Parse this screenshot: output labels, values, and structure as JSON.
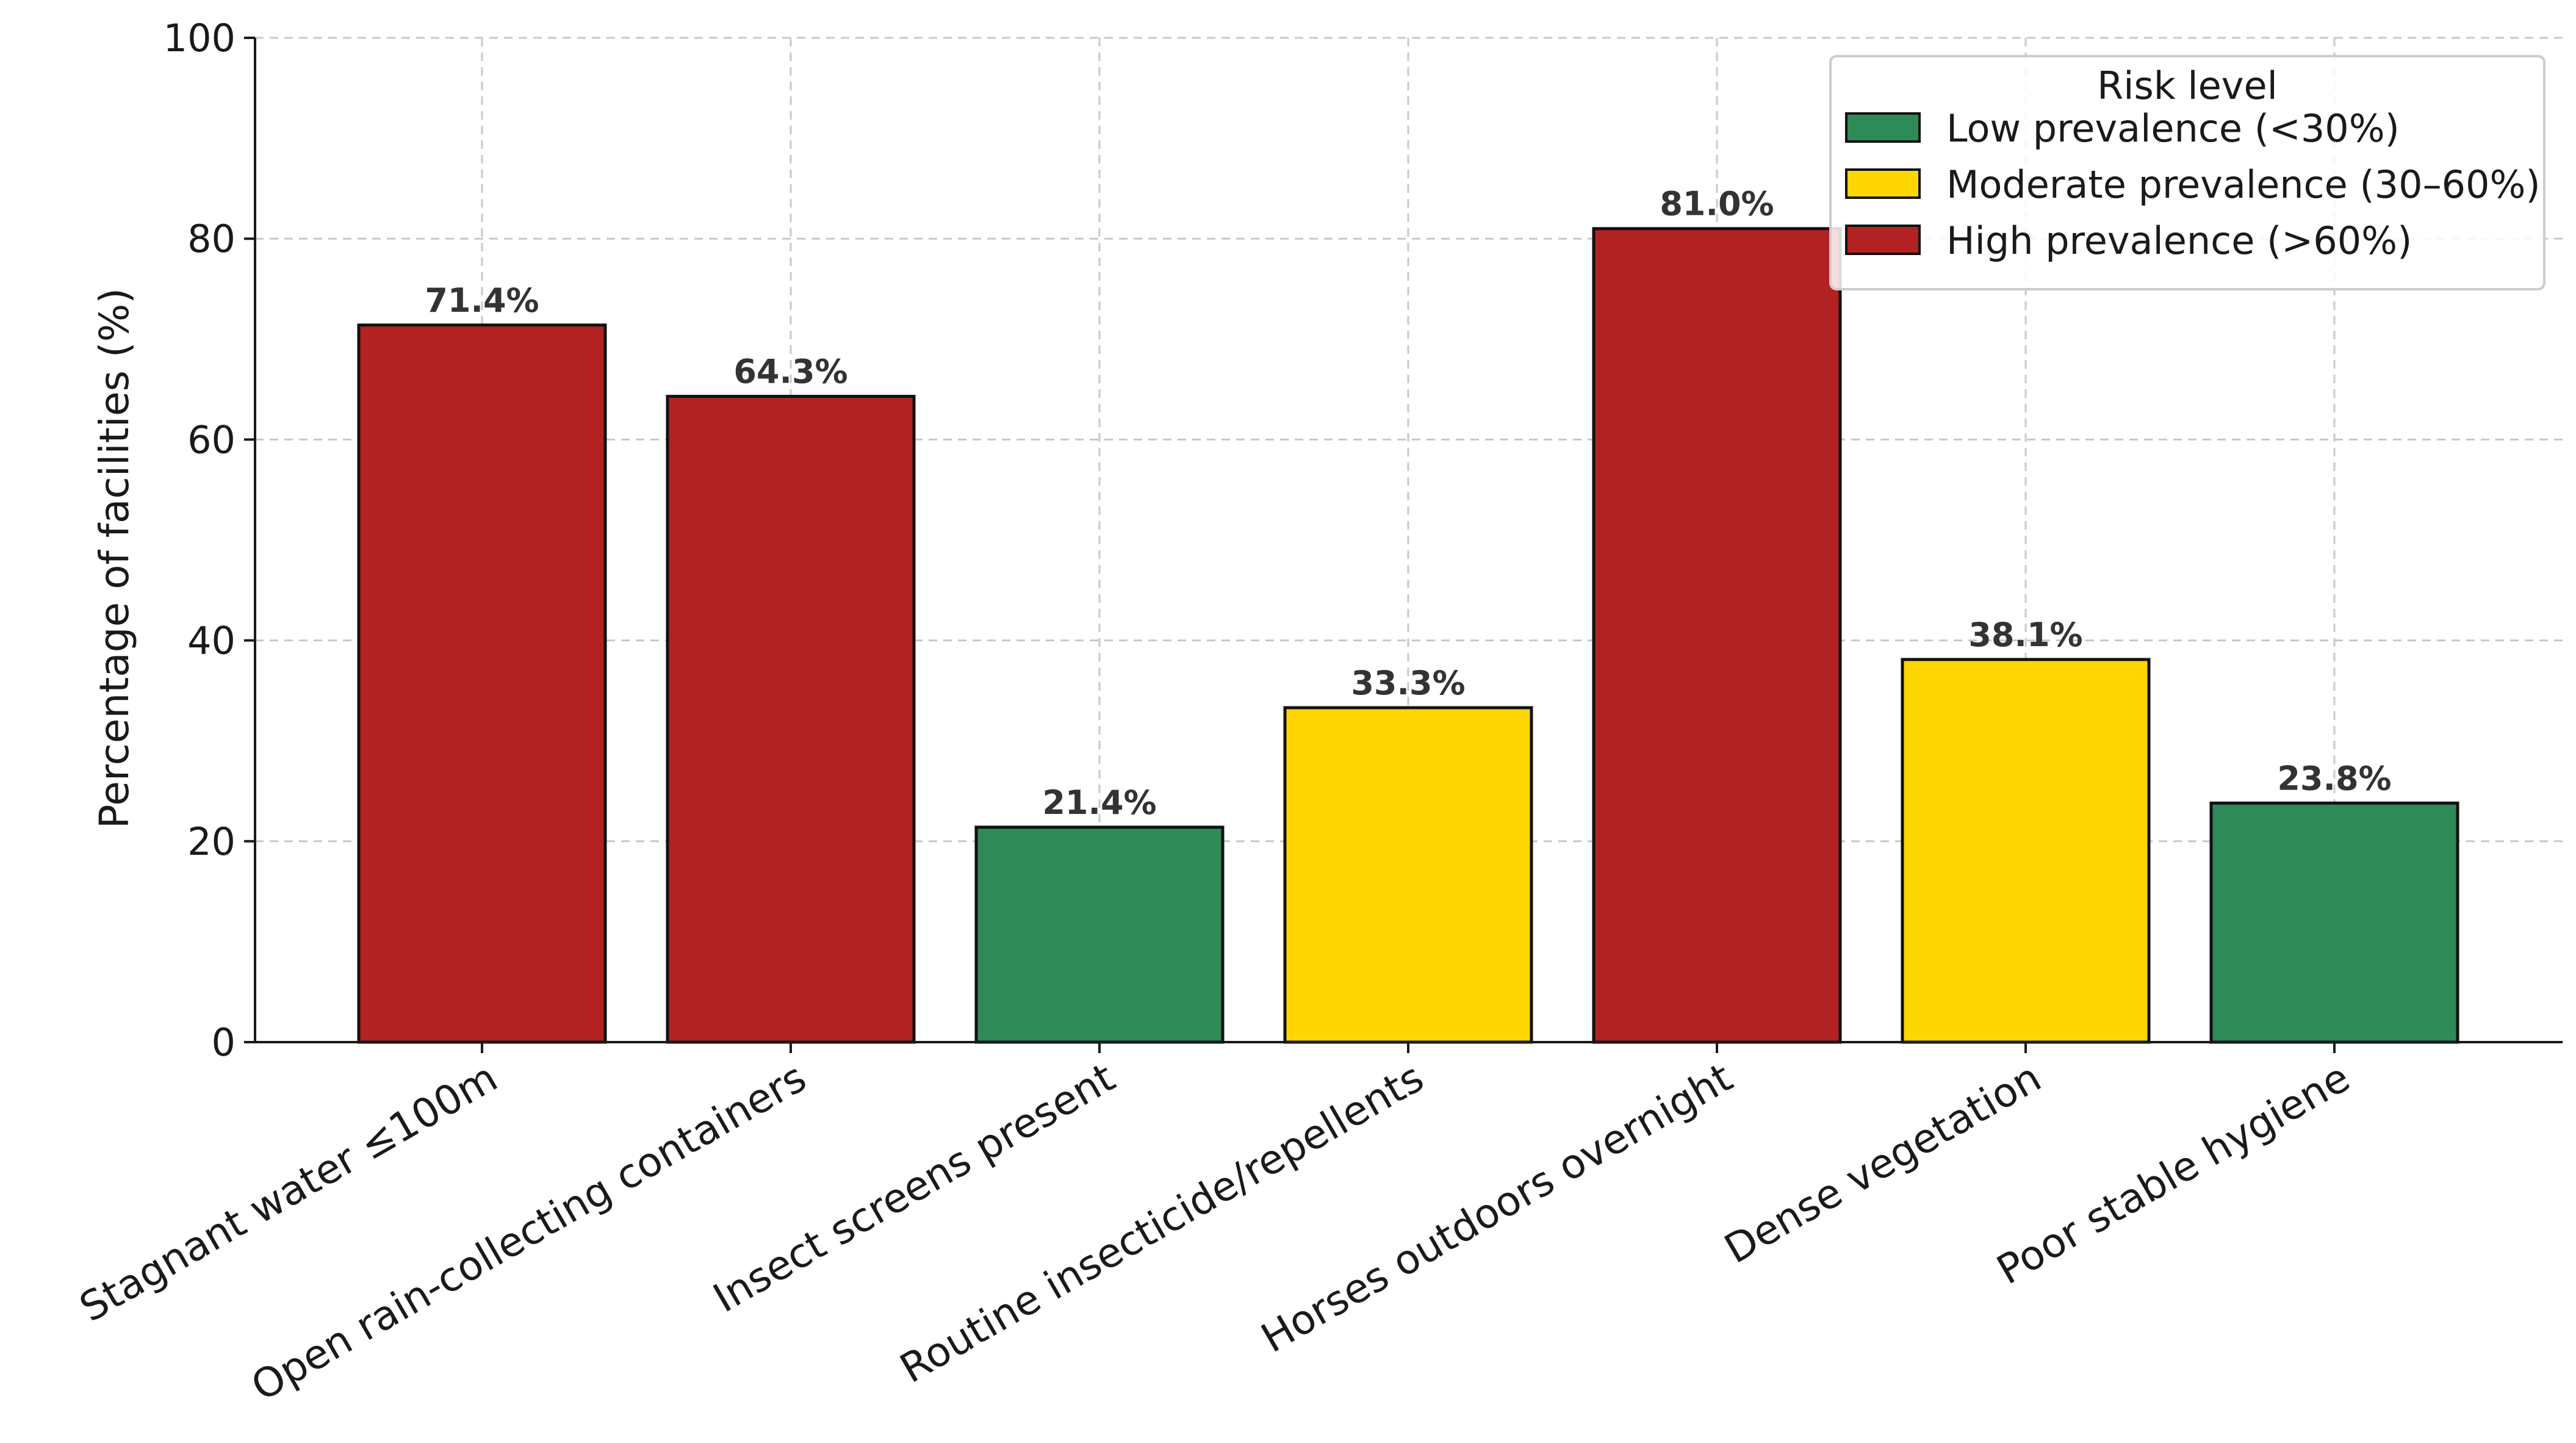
{
  "chart_data": {
    "type": "bar",
    "title": "",
    "xlabel": "",
    "ylabel": "Percentage of facilities (%)",
    "ylim": [
      0,
      100
    ],
    "yticks": [
      0,
      20,
      40,
      60,
      80,
      100
    ],
    "grid": true,
    "categories": [
      "Stagnant water ≤100m",
      "Open rain-collecting containers",
      "Insect screens present",
      "Routine insecticide/repellents",
      "Horses outdoors overnight",
      "Dense vegetation",
      "Poor stable hygiene"
    ],
    "values": [
      71.4,
      64.3,
      21.4,
      33.3,
      81.0,
      38.1,
      23.8
    ],
    "value_labels": [
      "71.4%",
      "64.3%",
      "21.4%",
      "33.3%",
      "81.0%",
      "38.1%",
      "23.8%"
    ],
    "bar_risk": [
      "high",
      "high",
      "low",
      "moderate",
      "high",
      "moderate",
      "low"
    ],
    "legend": {
      "title": "Risk level",
      "position": "top-right",
      "entries": [
        {
          "key": "low",
          "label": "Low prevalence (<30%)",
          "color": "#2e8b57"
        },
        {
          "key": "moderate",
          "label": "Moderate prevalence (30–60%)",
          "color": "#ffd700"
        },
        {
          "key": "high",
          "label": "High prevalence (>60%)",
          "color": "#b22222"
        }
      ]
    }
  }
}
